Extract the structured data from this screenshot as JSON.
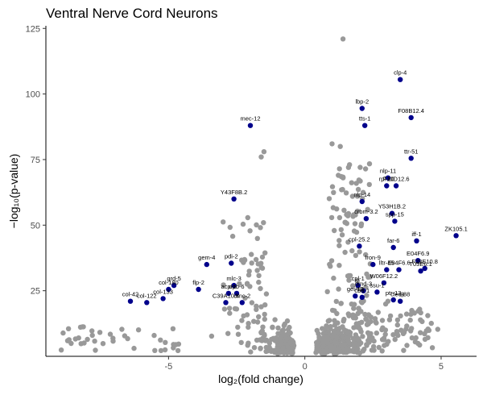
{
  "chart_data": {
    "type": "scatter",
    "title": "Ventral Nerve Cord Neurons",
    "xlabel": "log₂(fold change)",
    "ylabel": "−log₁₀(p-value)",
    "xlim": [
      -9.5,
      6.3
    ],
    "ylim": [
      0,
      126
    ],
    "xticks": [
      -5,
      0,
      5
    ],
    "yticks": [
      25,
      50,
      75,
      100,
      125
    ],
    "grid": false,
    "colors": {
      "background": "#95959",
      "highlight": "#00008B",
      "axis": "#000000"
    },
    "highlighted": [
      {
        "label": "clp-4",
        "x": 3.5,
        "y": 105.5
      },
      {
        "label": "lbp-2",
        "x": 2.1,
        "y": 94.5
      },
      {
        "label": "F08B12.4",
        "x": 3.9,
        "y": 91.0
      },
      {
        "label": "tts-1",
        "x": 2.2,
        "y": 88.0
      },
      {
        "label": "mec-12",
        "x": -2.0,
        "y": 88.0
      },
      {
        "label": "ttr-51",
        "x": 3.9,
        "y": 75.5
      },
      {
        "label": "nlp-11",
        "x": 3.05,
        "y": 68.0
      },
      {
        "label": "rpl-10",
        "x": 3.0,
        "y": 65.0
      },
      {
        "label": "F10D12.6",
        "x": 3.35,
        "y": 65.0
      },
      {
        "label": "Y43F8B.2",
        "x": -2.6,
        "y": 60.0
      },
      {
        "label": "nlp-14",
        "x": 2.1,
        "y": 59.0
      },
      {
        "label": "Y53H1B.2",
        "x": 3.2,
        "y": 54.5
      },
      {
        "label": "crbm-3.2",
        "x": 2.25,
        "y": 52.5
      },
      {
        "label": "spp-15",
        "x": 3.3,
        "y": 51.5
      },
      {
        "label": "ZK105.1",
        "x": 5.55,
        "y": 46.0
      },
      {
        "label": "iff-1",
        "x": 4.1,
        "y": 44.0
      },
      {
        "label": "far-6",
        "x": 3.25,
        "y": 41.5
      },
      {
        "label": "cpl-25.2",
        "x": 2.0,
        "y": 42.0
      },
      {
        "label": "E04F6.9",
        "x": 4.15,
        "y": 36.5
      },
      {
        "label": "lron-9",
        "x": 2.5,
        "y": 35.0
      },
      {
        "label": "lltr-45",
        "x": 3.0,
        "y": 33.0
      },
      {
        "label": "E04F6.6",
        "x": 3.45,
        "y": 33.0
      },
      {
        "label": "F28E10.8",
        "x": 4.4,
        "y": 33.5
      },
      {
        "label": "T03E6.1",
        "x": 4.25,
        "y": 32.5
      },
      {
        "label": "W06F12.2",
        "x": 2.9,
        "y": 28.0
      },
      {
        "label": "cpl-1",
        "x": 1.95,
        "y": 27.0
      },
      {
        "label": "dmd-3",
        "x": 2.15,
        "y": 25.0
      },
      {
        "label": "ssu-1",
        "x": 2.65,
        "y": 24.5
      },
      {
        "label": "gei-13",
        "x": 1.85,
        "y": 23.0
      },
      {
        "label": "ptr-13",
        "x": 3.25,
        "y": 21.5
      },
      {
        "label": "cbd-1",
        "x": 2.1,
        "y": 22.5
      },
      {
        "label": "clec-88",
        "x": 3.5,
        "y": 21.0
      },
      {
        "label": "gem-4",
        "x": -3.6,
        "y": 35.0
      },
      {
        "label": "pdi-2",
        "x": -2.7,
        "y": 35.5
      },
      {
        "label": "grd-5",
        "x": -4.8,
        "y": 27.0
      },
      {
        "label": "col-180",
        "x": -5.0,
        "y": 25.5
      },
      {
        "label": "flp-2",
        "x": -3.9,
        "y": 25.5
      },
      {
        "label": "mlc-3",
        "x": -2.6,
        "y": 27.0
      },
      {
        "label": "acp-1",
        "x": -2.8,
        "y": 24.0
      },
      {
        "label": "dpb-6",
        "x": -2.5,
        "y": 24.0
      },
      {
        "label": "col-133",
        "x": -5.2,
        "y": 22.0
      },
      {
        "label": "C39A10.4",
        "x": -2.9,
        "y": 20.5
      },
      {
        "label": "dmc-2",
        "x": -2.3,
        "y": 20.5
      },
      {
        "label": "col-42",
        "x": -6.4,
        "y": 21.0
      },
      {
        "label": "col-122",
        "x": -5.8,
        "y": 20.5
      }
    ]
  }
}
